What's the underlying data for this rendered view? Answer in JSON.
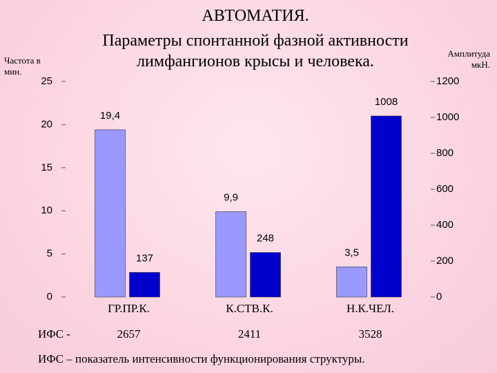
{
  "chart_data": {
    "type": "bar",
    "title": "АВТОМАТИЯ.",
    "subtitle": [
      "Параметры спонтанной фазной активности",
      "лимфангионов крысы и человека."
    ],
    "ylabel": "Частота в мин.",
    "y2label": "Амплитуда мкН.",
    "categories": [
      "ГР.ПР.К.",
      "К.СТВ.К.",
      "Н.К.ЧЕЛ."
    ],
    "series": [
      {
        "color": "#9999ff",
        "values": [
          19.4,
          9.9,
          3.5
        ],
        "value_labels": [
          "19,4",
          "9,9",
          "3,5"
        ]
      },
      {
        "color": "#0000cc",
        "axis": "y2",
        "values": [
          137,
          248,
          1008
        ]
      }
    ],
    "ylim": [
      0,
      25
    ],
    "yticks": [
      0,
      5,
      10,
      15,
      20,
      25
    ],
    "y2lim": [
      0,
      1200
    ],
    "y2ticks": [
      0,
      200,
      400,
      600,
      800,
      1000,
      1200
    ],
    "ifs_label": "ИФС -",
    "ifs_values": [
      2657,
      2411,
      3528
    ],
    "note": "ИФС – показатель интенсивности функционирования структуры."
  }
}
